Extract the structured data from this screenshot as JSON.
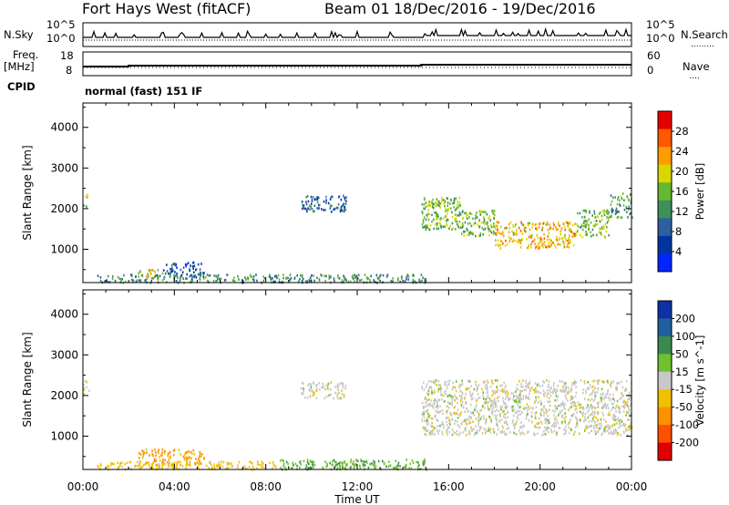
{
  "header": {
    "station": "Fort Hays West (fitACF)",
    "beam": "Beam 01",
    "date_range": "18/Dec/2016 - 19/Dec/2016"
  },
  "left_labels": {
    "nsky": "N.Sky",
    "freq": "Freq.",
    "freq_unit": "[MHz]",
    "cpid": "CPID"
  },
  "right_labels": {
    "nsearch": "N.Search",
    "nave": "Nave"
  },
  "noise_axis": {
    "top": "10^5",
    "bottom": "10^0"
  },
  "freq_axis": {
    "ticks": [
      "18",
      "8"
    ]
  },
  "nave_axis": {
    "ticks": [
      "60",
      "0"
    ]
  },
  "cpid_text": "normal (fast) 151 IF",
  "colors": {
    "power": [
      "#0026ff",
      "#0035a0",
      "#2e5f9e",
      "#3f8f5c",
      "#64b832",
      "#d9d700",
      "#ff9c00",
      "#ff5a00",
      "#e60000"
    ],
    "velocity": [
      "#1030a8",
      "#2060a0",
      "#3a8a50",
      "#70c030",
      "#c8c8c8",
      "#f0c000",
      "#ff9000",
      "#ff5000",
      "#e00000"
    ]
  },
  "chart_data": [
    {
      "type": "heatmap",
      "title": "Power",
      "ylabel": "Slant Range [km]",
      "xlabel": "",
      "ylim": [
        180,
        4600
      ],
      "yticks": [
        1000,
        2000,
        3000,
        4000
      ],
      "xlim": [
        0,
        24
      ],
      "xticks": [
        "00:00",
        "04:00",
        "08:00",
        "12:00",
        "16:00",
        "20:00",
        "00:00"
      ],
      "colorbar": {
        "label": "Power [dB]",
        "range": [
          0,
          32
        ],
        "ticks": [
          4,
          8,
          12,
          16,
          20,
          24,
          28
        ]
      },
      "regions": [
        {
          "t": [
            0.0,
            0.25
          ],
          "r": [
            2050,
            2400
          ],
          "value": 18
        },
        {
          "t": [
            2.4,
            3.5
          ],
          "r": [
            300,
            520
          ],
          "value": 20
        },
        {
          "t": [
            3.5,
            5.3
          ],
          "r": [
            300,
            700
          ],
          "value": 8
        },
        {
          "t": [
            0.5,
            15.0
          ],
          "r": [
            200,
            400
          ],
          "value": 12
        },
        {
          "t": [
            9.5,
            11.5
          ],
          "r": [
            1950,
            2350
          ],
          "value": 8
        },
        {
          "t": [
            14.8,
            16.5
          ],
          "r": [
            1500,
            2300
          ],
          "value": 16
        },
        {
          "t": [
            16.5,
            18.0
          ],
          "r": [
            1350,
            2000
          ],
          "value": 16
        },
        {
          "t": [
            18.0,
            21.5
          ],
          "r": [
            1050,
            1700
          ],
          "value": 22
        },
        {
          "t": [
            21.5,
            23.0
          ],
          "r": [
            1300,
            2000
          ],
          "value": 16
        },
        {
          "t": [
            23.0,
            24.0
          ],
          "r": [
            1800,
            2400
          ],
          "value": 14
        }
      ]
    },
    {
      "type": "heatmap",
      "title": "Velocity",
      "ylabel": "Slant Range [km]",
      "xlabel": "Time UT",
      "ylim": [
        180,
        4600
      ],
      "yticks": [
        1000,
        2000,
        3000,
        4000
      ],
      "xlim": [
        0,
        24
      ],
      "xticks": [
        "00:00",
        "04:00",
        "08:00",
        "12:00",
        "16:00",
        "20:00",
        "00:00"
      ],
      "colorbar": {
        "label": "Velocity [m s^-1]",
        "ticks": [
          200,
          100,
          50,
          15,
          -15,
          -50,
          -100,
          -200
        ]
      },
      "regions": [
        {
          "t": [
            0.0,
            0.25
          ],
          "r": [
            2050,
            2400
          ],
          "value": 0
        },
        {
          "t": [
            2.4,
            5.3
          ],
          "r": [
            300,
            700
          ],
          "value": -60
        },
        {
          "t": [
            0.5,
            8.5
          ],
          "r": [
            200,
            400
          ],
          "value": -30
        },
        {
          "t": [
            8.5,
            15.0
          ],
          "r": [
            200,
            450
          ],
          "value": 40
        },
        {
          "t": [
            9.5,
            11.5
          ],
          "r": [
            1950,
            2350
          ],
          "value": 0
        },
        {
          "t": [
            14.8,
            24.0
          ],
          "r": [
            1050,
            2400
          ],
          "value": 0
        }
      ]
    }
  ]
}
